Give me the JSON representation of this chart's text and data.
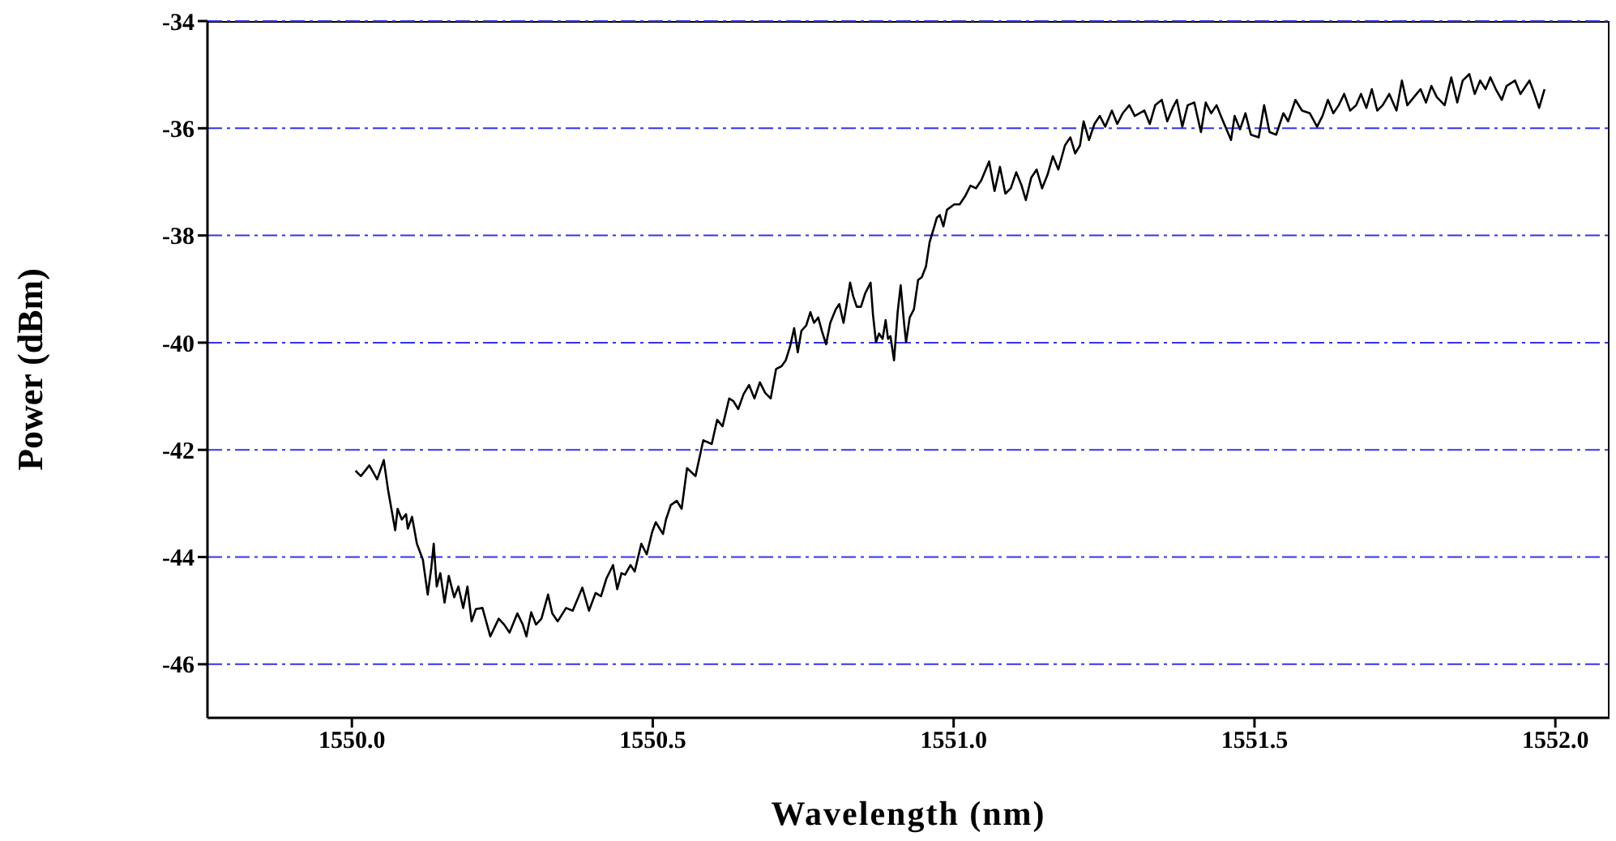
{
  "chart_data": {
    "type": "line",
    "xlabel": "Wavelength (nm)",
    "ylabel": "Power (dBm)",
    "xlim": [
      1549.76,
      1552.09
    ],
    "ylim": [
      -47,
      -34
    ],
    "xticks": [
      {
        "value": 1550,
        "label": "1550.0"
      },
      {
        "value": 1550.5,
        "label": "1550.5"
      },
      {
        "value": 1551,
        "label": "1551.0"
      },
      {
        "value": 1551.5,
        "label": "1551.5"
      },
      {
        "value": 1552,
        "label": "1552.0"
      }
    ],
    "yticks": [
      -46,
      -44,
      -42,
      -40,
      -38,
      -36,
      -34
    ],
    "grid": "y",
    "marker": "none",
    "line_style": "solid",
    "series": [
      {
        "color": "#000000",
        "x": [
          1550.006,
          1550.015,
          1550.029,
          1550.042,
          1550.053,
          1550.06,
          1550.072,
          1550.076,
          1550.083,
          1550.09,
          1550.093,
          1550.1,
          1550.108,
          1550.118,
          1550.126,
          1550.132,
          1550.136,
          1550.141,
          1550.147,
          1550.154,
          1550.161,
          1550.17,
          1550.177,
          1550.185,
          1550.192,
          1550.199,
          1550.206,
          1550.217,
          1550.23,
          1550.244,
          1550.253,
          1550.262,
          1550.275,
          1550.284,
          1550.29,
          1550.298,
          1550.306,
          1550.315,
          1550.326,
          1550.333,
          1550.342,
          1550.356,
          1550.367,
          1550.383,
          1550.394,
          1550.405,
          1550.414,
          1550.423,
          1550.434,
          1550.441,
          1550.448,
          1550.454,
          1550.463,
          1550.47,
          1550.481,
          1550.49,
          1550.499,
          1550.505,
          1550.517,
          1550.522,
          1550.53,
          1550.54,
          1550.548,
          1550.557,
          1550.571,
          1550.584,
          1550.598,
          1550.607,
          1550.616,
          1550.627,
          1550.634,
          1550.642,
          1550.651,
          1550.66,
          1550.669,
          1550.678,
          1550.687,
          1550.696,
          1550.705,
          1550.714,
          1550.721,
          1550.728,
          1550.735,
          1550.741,
          1550.747,
          1550.755,
          1550.762,
          1550.768,
          1550.775,
          1550.781,
          1550.788,
          1550.795,
          1550.804,
          1550.81,
          1550.817,
          1550.823,
          1550.828,
          1550.833,
          1550.839,
          1550.846,
          1550.853,
          1550.862,
          1550.866,
          1550.871,
          1550.876,
          1550.882,
          1550.887,
          1550.891,
          1550.895,
          1550.901,
          1550.907,
          1550.912,
          1550.918,
          1550.921,
          1550.927,
          1550.934,
          1550.941,
          1550.947,
          1550.954,
          1550.96,
          1550.968,
          1550.972,
          1550.977,
          1550.983,
          1550.989,
          1551.001,
          1551.01,
          1551.019,
          1551.028,
          1551.037,
          1551.046,
          1551.059,
          1551.068,
          1551.077,
          1551.086,
          1551.095,
          1551.104,
          1551.113,
          1551.12,
          1551.129,
          1551.138,
          1551.147,
          1551.156,
          1551.165,
          1551.174,
          1551.185,
          1551.194,
          1551.202,
          1551.21,
          1551.216,
          1551.225,
          1551.234,
          1551.243,
          1551.252,
          1551.263,
          1551.272,
          1551.281,
          1551.292,
          1551.301,
          1551.317,
          1551.326,
          1551.335,
          1551.346,
          1551.355,
          1551.364,
          1551.371,
          1551.38,
          1551.389,
          1551.4,
          1551.411,
          1551.419,
          1551.428,
          1551.437,
          1551.446,
          1551.461,
          1551.467,
          1551.476,
          1551.485,
          1551.494,
          1551.507,
          1551.516,
          1551.525,
          1551.536,
          1551.548,
          1551.556,
          1551.568,
          1551.579,
          1551.592,
          1551.604,
          1551.613,
          1551.622,
          1551.631,
          1551.64,
          1551.649,
          1551.659,
          1551.669,
          1551.677,
          1551.686,
          1551.695,
          1551.704,
          1551.713,
          1551.724,
          1551.736,
          1551.745,
          1551.754,
          1551.765,
          1551.776,
          1551.785,
          1551.794,
          1551.803,
          1551.816,
          1551.827,
          1551.837,
          1551.846,
          1551.857,
          1551.866,
          1551.875,
          1551.884,
          1551.892,
          1551.901,
          1551.911,
          1551.919,
          1551.933,
          1551.942,
          1551.951,
          1551.957,
          1551.964,
          1551.973,
          1551.982
        ],
        "values": [
          -42.39,
          -42.49,
          -42.29,
          -42.55,
          -42.19,
          -42.74,
          -43.5,
          -43.1,
          -43.3,
          -43.2,
          -43.47,
          -43.25,
          -43.75,
          -44.05,
          -44.7,
          -44.2,
          -43.75,
          -44.55,
          -44.3,
          -44.85,
          -44.35,
          -44.75,
          -44.55,
          -44.95,
          -44.55,
          -45.2,
          -44.97,
          -44.95,
          -45.48,
          -45.15,
          -45.26,
          -45.41,
          -45.05,
          -45.26,
          -45.48,
          -45.03,
          -45.26,
          -45.15,
          -44.7,
          -45.05,
          -45.2,
          -44.95,
          -45.0,
          -44.57,
          -45.0,
          -44.67,
          -44.73,
          -44.4,
          -44.15,
          -44.6,
          -44.3,
          -44.33,
          -44.15,
          -44.27,
          -43.75,
          -43.95,
          -43.53,
          -43.35,
          -43.57,
          -43.3,
          -43.03,
          -42.95,
          -43.1,
          -42.34,
          -42.49,
          -41.82,
          -41.89,
          -41.44,
          -41.56,
          -41.04,
          -41.09,
          -41.24,
          -40.96,
          -40.79,
          -41.04,
          -40.74,
          -40.94,
          -41.04,
          -40.49,
          -40.44,
          -40.33,
          -40.08,
          -39.73,
          -40.18,
          -39.78,
          -39.68,
          -39.43,
          -39.63,
          -39.53,
          -39.78,
          -40.03,
          -39.63,
          -39.38,
          -39.28,
          -39.63,
          -39.23,
          -38.88,
          -39.13,
          -39.33,
          -39.33,
          -39.08,
          -38.88,
          -39.48,
          -39.99,
          -39.83,
          -39.93,
          -39.58,
          -39.93,
          -39.88,
          -40.33,
          -39.43,
          -38.93,
          -39.68,
          -39.99,
          -39.53,
          -39.38,
          -38.83,
          -38.78,
          -38.58,
          -38.13,
          -37.83,
          -37.67,
          -37.62,
          -37.83,
          -37.52,
          -37.42,
          -37.42,
          -37.27,
          -37.07,
          -37.12,
          -36.97,
          -36.62,
          -37.17,
          -36.72,
          -37.22,
          -37.12,
          -36.82,
          -37.07,
          -37.34,
          -36.92,
          -36.77,
          -37.12,
          -36.87,
          -36.52,
          -36.77,
          -36.32,
          -36.17,
          -36.47,
          -36.32,
          -35.87,
          -36.22,
          -35.92,
          -35.77,
          -35.97,
          -35.67,
          -35.92,
          -35.72,
          -35.57,
          -35.77,
          -35.67,
          -35.92,
          -35.57,
          -35.47,
          -35.87,
          -35.62,
          -35.47,
          -35.97,
          -35.57,
          -35.52,
          -36.07,
          -35.52,
          -35.72,
          -35.57,
          -35.82,
          -36.22,
          -35.77,
          -36.02,
          -35.72,
          -36.12,
          -36.17,
          -35.57,
          -36.07,
          -36.12,
          -35.72,
          -35.87,
          -35.47,
          -35.67,
          -35.72,
          -35.97,
          -35.77,
          -35.47,
          -35.72,
          -35.57,
          -35.36,
          -35.67,
          -35.57,
          -35.36,
          -35.62,
          -35.27,
          -35.67,
          -35.57,
          -35.36,
          -35.67,
          -35.11,
          -35.57,
          -35.42,
          -35.27,
          -35.52,
          -35.21,
          -35.42,
          -35.57,
          -35.05,
          -35.52,
          -35.11,
          -34.99,
          -35.36,
          -35.11,
          -35.27,
          -35.05,
          -35.27,
          -35.47,
          -35.21,
          -35.11,
          -35.36,
          -35.21,
          -35.11,
          -35.32,
          -35.62,
          -35.27
        ]
      }
    ]
  }
}
